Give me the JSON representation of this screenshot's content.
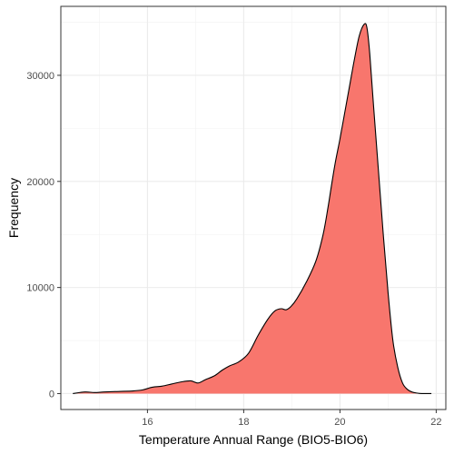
{
  "chart_data": {
    "type": "area",
    "title": "",
    "xlabel": "Temperature Annual Range (BIO5-BIO6)",
    "ylabel": "Frequency",
    "xlim": [
      14.2,
      22.2
    ],
    "ylim": [
      -1500,
      36500
    ],
    "x_ticks": [
      16,
      18,
      20,
      22
    ],
    "x_tick_labels": [
      "16",
      "18",
      "20",
      "22"
    ],
    "y_ticks": [
      0,
      10000,
      20000,
      30000
    ],
    "y_tick_labels": [
      "0",
      "10000",
      "20000",
      "30000"
    ],
    "grid": true,
    "fill_color": "#F8766D",
    "line_color": "#000000",
    "series": [
      {
        "x": [
          14.45,
          14.7,
          14.9,
          15.1,
          15.4,
          15.7,
          15.9,
          16.1,
          16.3,
          16.5,
          16.7,
          16.9,
          17.05,
          17.2,
          17.4,
          17.55,
          17.7,
          17.9,
          18.1,
          18.3,
          18.5,
          18.65,
          18.78,
          18.88,
          18.98,
          19.1,
          19.3,
          19.5,
          19.65,
          19.75,
          19.82,
          19.9,
          20.0,
          20.1,
          20.2,
          20.3,
          20.4,
          20.5,
          20.56,
          20.62,
          20.7,
          20.8,
          20.9,
          21.0,
          21.1,
          21.2,
          21.3,
          21.4,
          21.5,
          21.6,
          21.7,
          21.9
        ],
        "y": [
          0,
          150,
          100,
          150,
          200,
          250,
          350,
          600,
          700,
          900,
          1100,
          1200,
          1000,
          1300,
          1700,
          2200,
          2600,
          3000,
          3800,
          5500,
          7000,
          7800,
          8000,
          7900,
          8200,
          8900,
          10500,
          12500,
          15000,
          17500,
          19500,
          21700,
          24000,
          26500,
          29000,
          31500,
          33700,
          34800,
          34500,
          32000,
          27000,
          21000,
          15000,
          9500,
          5000,
          2500,
          1000,
          400,
          150,
          50,
          0,
          0
        ]
      }
    ]
  }
}
